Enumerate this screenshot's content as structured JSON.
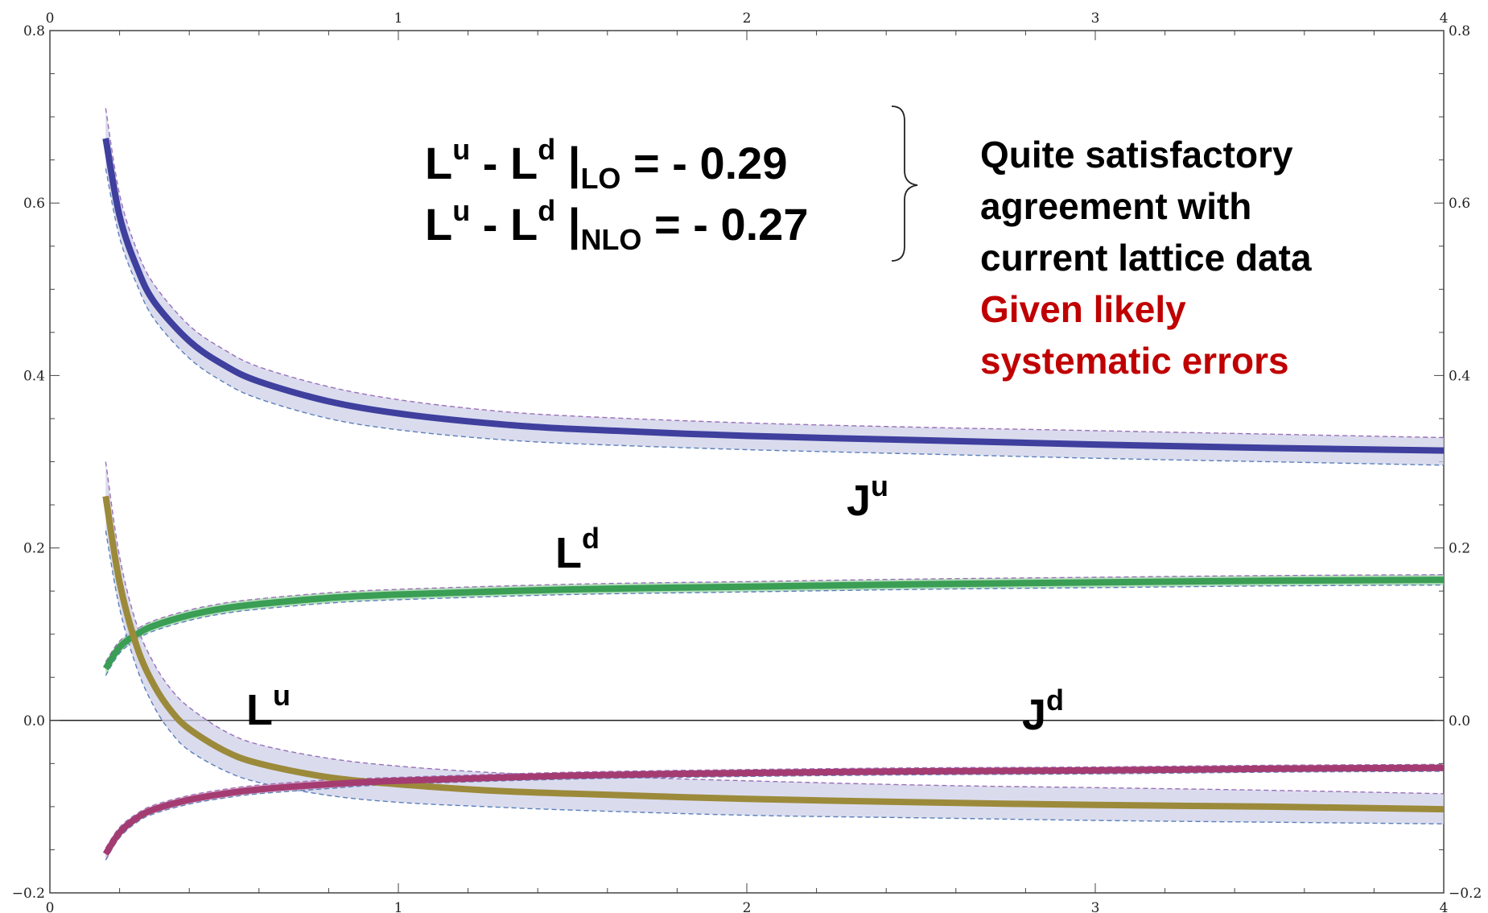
{
  "chart_data": {
    "type": "line",
    "xlim": [
      0,
      4
    ],
    "ylim": [
      -0.2,
      0.8
    ],
    "x_ticks": [
      "0",
      "1",
      "2",
      "3",
      "4"
    ],
    "y_ticks": [
      "−0.2",
      "0.0",
      "0.2",
      "0.4",
      "0.6",
      "0.8"
    ],
    "grid": false,
    "series": [
      {
        "name": "J",
        "sup": "u",
        "color": "#3f3f9e",
        "band_color": "#cdd0e8",
        "x": [
          0.16,
          0.2,
          0.25,
          0.3,
          0.4,
          0.5,
          0.6,
          0.8,
          1.0,
          1.25,
          1.5,
          2.0,
          2.5,
          3.0,
          3.5,
          4.0
        ],
        "y": [
          0.675,
          0.585,
          0.525,
          0.485,
          0.44,
          0.412,
          0.393,
          0.37,
          0.356,
          0.345,
          0.338,
          0.33,
          0.325,
          0.32,
          0.316,
          0.313
        ],
        "upper": [
          0.71,
          0.61,
          0.545,
          0.505,
          0.458,
          0.43,
          0.41,
          0.387,
          0.372,
          0.36,
          0.353,
          0.345,
          0.34,
          0.336,
          0.332,
          0.328
        ],
        "lower": [
          0.64,
          0.56,
          0.505,
          0.465,
          0.42,
          0.392,
          0.373,
          0.35,
          0.337,
          0.327,
          0.321,
          0.314,
          0.309,
          0.304,
          0.3,
          0.296
        ]
      },
      {
        "name": "L",
        "sup": "d",
        "color": "#3a9e55",
        "band_color": "#9fd5a8",
        "x": [
          0.16,
          0.2,
          0.25,
          0.3,
          0.4,
          0.5,
          0.6,
          0.8,
          1.0,
          1.5,
          2.0,
          2.5,
          3.0,
          3.5,
          4.0
        ],
        "y": [
          0.06,
          0.085,
          0.1,
          0.11,
          0.122,
          0.13,
          0.135,
          0.142,
          0.146,
          0.152,
          0.155,
          0.158,
          0.16,
          0.162,
          0.163
        ],
        "upper": [
          0.068,
          0.092,
          0.106,
          0.116,
          0.128,
          0.136,
          0.141,
          0.148,
          0.152,
          0.158,
          0.161,
          0.164,
          0.166,
          0.168,
          0.169
        ],
        "lower": [
          0.052,
          0.078,
          0.094,
          0.104,
          0.116,
          0.124,
          0.129,
          0.136,
          0.14,
          0.146,
          0.149,
          0.152,
          0.154,
          0.156,
          0.157
        ]
      },
      {
        "name": "L",
        "sup": "u",
        "color": "#9c8a3b",
        "band_color": "#cdd0e8",
        "x": [
          0.16,
          0.2,
          0.25,
          0.3,
          0.35,
          0.4,
          0.5,
          0.6,
          0.8,
          1.0,
          1.25,
          1.5,
          2.0,
          2.5,
          3.0,
          3.5,
          4.0
        ],
        "y": [
          0.26,
          0.16,
          0.085,
          0.04,
          0.01,
          -0.01,
          -0.035,
          -0.05,
          -0.066,
          -0.074,
          -0.081,
          -0.085,
          -0.091,
          -0.095,
          -0.098,
          -0.1,
          -0.103
        ],
        "upper": [
          0.3,
          0.19,
          0.11,
          0.065,
          0.035,
          0.015,
          -0.012,
          -0.028,
          -0.044,
          -0.053,
          -0.06,
          -0.064,
          -0.07,
          -0.075,
          -0.078,
          -0.081,
          -0.085
        ],
        "lower": [
          0.22,
          0.13,
          0.06,
          0.015,
          -0.015,
          -0.035,
          -0.058,
          -0.072,
          -0.087,
          -0.095,
          -0.1,
          -0.104,
          -0.11,
          -0.113,
          -0.116,
          -0.118,
          -0.12
        ]
      },
      {
        "name": "J",
        "sup": "d",
        "color": "#a43c72",
        "band_color": "#d9a7c3",
        "x": [
          0.16,
          0.2,
          0.25,
          0.3,
          0.4,
          0.5,
          0.6,
          0.8,
          1.0,
          1.5,
          2.0,
          2.5,
          3.0,
          3.5,
          4.0
        ],
        "y": [
          -0.155,
          -0.13,
          -0.113,
          -0.103,
          -0.092,
          -0.085,
          -0.08,
          -0.074,
          -0.07,
          -0.064,
          -0.061,
          -0.059,
          -0.058,
          -0.056,
          -0.055
        ],
        "upper": [
          -0.148,
          -0.124,
          -0.108,
          -0.098,
          -0.087,
          -0.08,
          -0.075,
          -0.069,
          -0.066,
          -0.06,
          -0.057,
          -0.055,
          -0.054,
          -0.052,
          -0.051
        ],
        "lower": [
          -0.162,
          -0.136,
          -0.118,
          -0.108,
          -0.097,
          -0.09,
          -0.085,
          -0.079,
          -0.074,
          -0.068,
          -0.065,
          -0.063,
          -0.062,
          -0.06,
          -0.059
        ]
      }
    ],
    "annotations": {
      "formula_lo": {
        "a": "L",
        "a_sup": "u",
        "mid": " - L",
        "b_sup": "d",
        "bar": " |",
        "sub": "LO",
        "value": "  = - 0.29"
      },
      "formula_nlo": {
        "a": "L",
        "a_sup": "u",
        "mid": " -  L",
        "b_sup": "d",
        "bar": " |",
        "sub": "NLO",
        "value": " = - 0.27"
      },
      "note_black": [
        "Quite satisfactory",
        "agreement with",
        "current lattice data"
      ],
      "note_red": [
        "Given likely",
        "systematic  errors"
      ],
      "note_red_color": "#c00000"
    }
  }
}
